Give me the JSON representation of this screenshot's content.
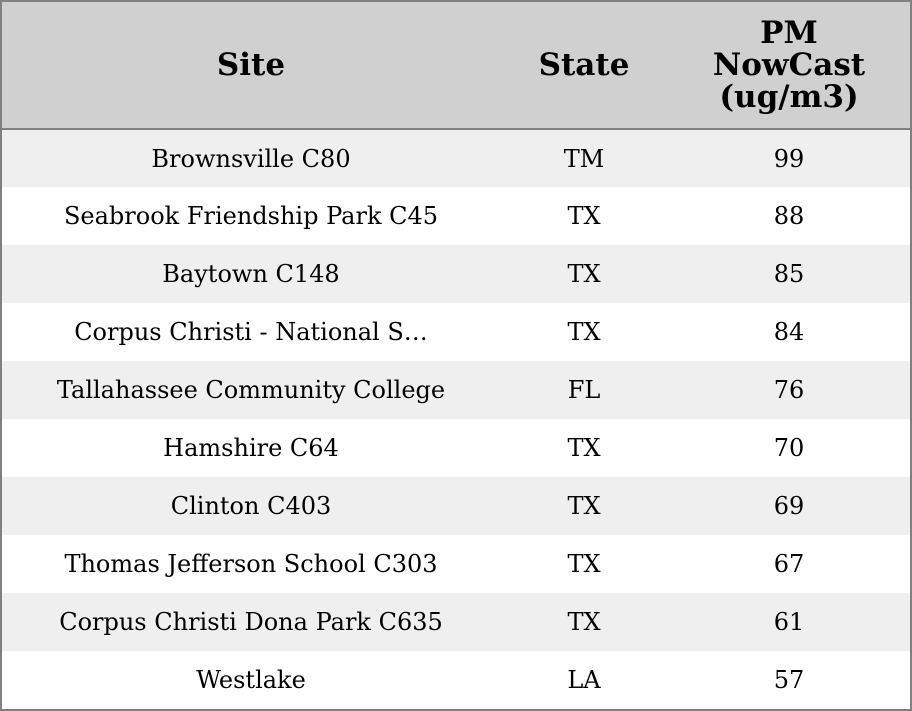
{
  "chart_data": {
    "type": "table",
    "columns": [
      "Site",
      "State",
      "PM NowCast (ug/m3)"
    ],
    "rows": [
      {
        "site": "Brownsville C80",
        "state": "TM",
        "value": "99"
      },
      {
        "site": "Seabrook Friendship Park C45",
        "state": "TX",
        "value": "88"
      },
      {
        "site": "Baytown C148",
        "state": "TX",
        "value": "85"
      },
      {
        "site": "Corpus Christi - National S…",
        "state": "TX",
        "value": "84"
      },
      {
        "site": "Tallahassee Community College",
        "state": "FL",
        "value": "76"
      },
      {
        "site": "Hamshire C64",
        "state": "TX",
        "value": "70"
      },
      {
        "site": "Clinton C403",
        "state": "TX",
        "value": "69"
      },
      {
        "site": "Thomas Jefferson School C303",
        "state": "TX",
        "value": "67"
      },
      {
        "site": "Corpus Christi Dona Park C635",
        "state": "TX",
        "value": "61"
      },
      {
        "site": "Westlake",
        "state": "LA",
        "value": "57"
      }
    ],
    "header": {
      "site": "Site",
      "state": "State",
      "value_line1": "PM",
      "value_line2": "NowCast",
      "value_line3": "(ug/m3)"
    },
    "colors": {
      "header_bg": "#d0d0d0",
      "stripe_bg": "#efefef",
      "border": "#808080"
    }
  }
}
